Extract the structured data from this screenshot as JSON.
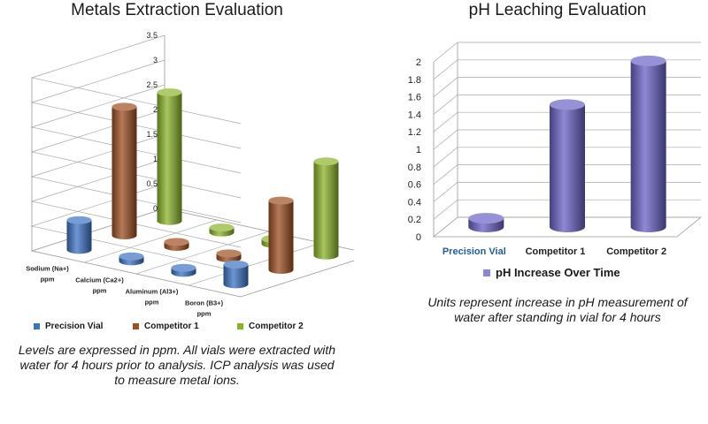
{
  "left_chart": {
    "title": "Metals Extraction Evaluation",
    "caption": "Levels are expressed in ppm. All vials were extracted with water for 4 hours prior to analysis. ICP analysis was used to measure metal ions."
  },
  "right_chart": {
    "title": "pH Leaching Evaluation",
    "caption": "Units represent increase in pH measurement of water after standing in vial for 4 hours"
  },
  "chart_data": [
    {
      "type": "bar",
      "title": "Metals Extraction Evaluation",
      "categories": [
        [
          "Sodium (Na+)",
          "ppm"
        ],
        [
          "Calcium (Ca2+)",
          "ppm"
        ],
        [
          "Aluminum (Al3+)",
          "ppm"
        ],
        [
          "Boron (B3+)",
          "ppm"
        ]
      ],
      "series": [
        {
          "name": "Precision Vial",
          "color": "#3e73c4",
          "values": [
            0.6,
            0.1,
            0.1,
            0.4
          ]
        },
        {
          "name": "Competitor 1",
          "color": "#9c4f22",
          "values": [
            2.6,
            0.1,
            0.1,
            1.4
          ]
        },
        {
          "name": "Competitor 2",
          "color": "#8bb32a",
          "values": [
            2.6,
            0.1,
            0.1,
            1.9
          ]
        }
      ],
      "ylim": [
        0,
        3.5
      ],
      "yticks": [
        "0",
        "0.5",
        "1",
        "1.5",
        "2",
        "2.5",
        "3",
        "3.5"
      ],
      "legend_position": "bottom",
      "grid": true,
      "style": "3d-cylinders"
    },
    {
      "type": "bar",
      "title": "pH Leaching Evaluation",
      "categories": [
        "Precision Vial",
        "Competitor 1",
        "Competitor 2"
      ],
      "highlight_category_color": "#1f5fa0",
      "series": [
        {
          "name": "pH Increase Over Time",
          "color": "#6a62c7",
          "values": [
            0.1,
            1.4,
            1.9
          ]
        }
      ],
      "ylim": [
        0,
        2
      ],
      "yticks": [
        "0",
        "0.2",
        "0.4",
        "0.6",
        "0.8",
        "1",
        "1.2",
        "1.4",
        "1.6",
        "1.8",
        "2"
      ],
      "legend_position": "bottom",
      "grid": true,
      "style": "3d-cylinders"
    }
  ]
}
